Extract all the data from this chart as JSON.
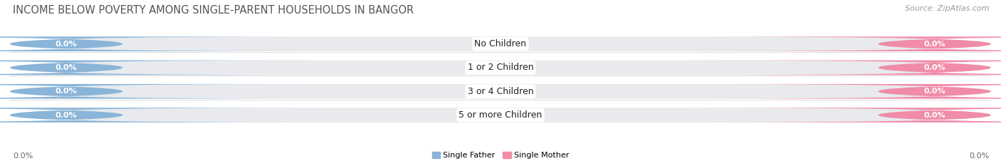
{
  "title": "INCOME BELOW POVERTY AMONG SINGLE-PARENT HOUSEHOLDS IN BANGOR",
  "source": "Source: ZipAtlas.com",
  "categories": [
    "No Children",
    "1 or 2 Children",
    "3 or 4 Children",
    "5 or more Children"
  ],
  "father_values": [
    0.0,
    0.0,
    0.0,
    0.0
  ],
  "mother_values": [
    0.0,
    0.0,
    0.0,
    0.0
  ],
  "father_color": "#8ab4d8",
  "mother_color": "#f08ca8",
  "bar_bg_color": "#e8eaed",
  "row_sep_color": "#d0d0d0",
  "title_fontsize": 10.5,
  "source_fontsize": 8,
  "value_fontsize": 8,
  "category_fontsize": 9,
  "x_left_label": "0.0%",
  "x_right_label": "0.0%",
  "legend_father": "Single Father",
  "legend_mother": "Single Mother",
  "background_color": "#ffffff"
}
